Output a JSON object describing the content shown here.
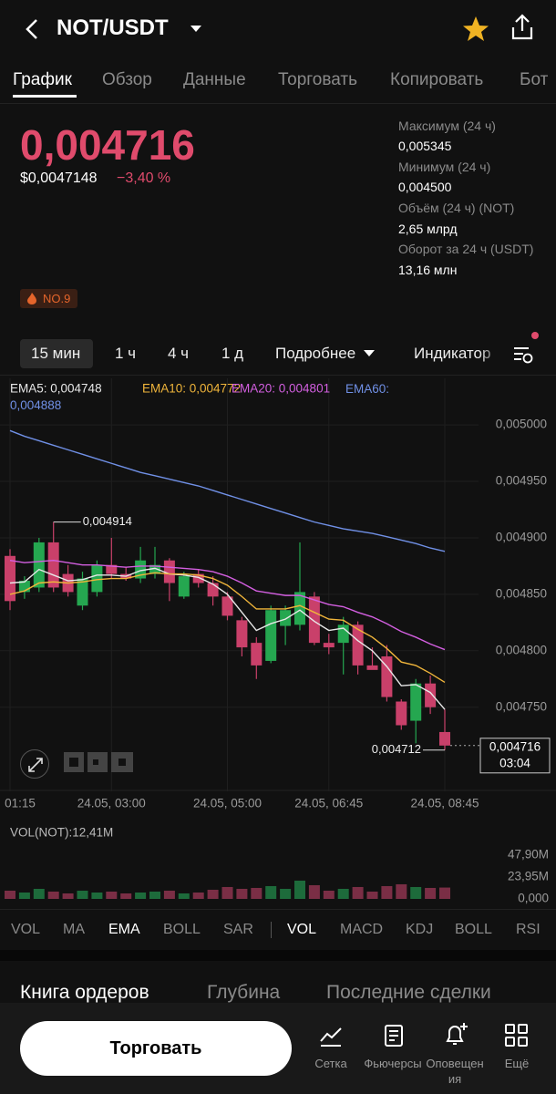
{
  "header": {
    "pair": "NOT/USDT"
  },
  "tabs": [
    "График",
    "Обзор",
    "Данные",
    "Торговать",
    "Копировать",
    "Бот"
  ],
  "price": {
    "last": "0,004716",
    "usd": "$0,0047148",
    "change": "−3,40 %"
  },
  "stats": [
    {
      "label": "Максимум (24 ч)",
      "value": "0,005345"
    },
    {
      "label": "Минимум (24 ч)",
      "value": "0,004500"
    },
    {
      "label": "Объём (24 ч) (NOT)",
      "value": "2,65 млрд"
    },
    {
      "label": "Оборот за 24 ч (USDT)",
      "value": "13,16 млн"
    }
  ],
  "badge": "NO.9",
  "timeframes": [
    "15 мин",
    "1 ч",
    "4 ч",
    "1 д",
    "Подробнее",
    "Индикатор"
  ],
  "indicators": [
    "VOL",
    "MA",
    "EMA",
    "BOLL",
    "SAR",
    "VOL",
    "MACD",
    "KDJ",
    "BOLL",
    "RSI"
  ],
  "book_tabs": [
    "Книга ордеров",
    "Глубина",
    "Последние сделки"
  ],
  "bottom": {
    "button": "Торговать",
    "items": [
      "Сетка",
      "Фьючерсы",
      "Оповещения",
      "Ещё"
    ]
  },
  "chart_data": [
    {
      "type": "candlestick",
      "categories": [
        "01:15",
        null,
        null,
        null,
        null,
        null,
        null,
        "24.05, 03:00",
        null,
        null,
        null,
        null,
        null,
        null,
        null,
        "24.05, 05:00",
        null,
        null,
        null,
        null,
        null,
        null,
        "24.05, 06:45",
        null,
        null,
        null,
        null,
        null,
        null,
        null,
        "24.05, 08:45"
      ],
      "open": [
        0.004884,
        0.004852,
        0.004856,
        0.004896,
        0.004868,
        0.00484,
        0.004852,
        0.004876,
        0.004868,
        0.004864,
        0.004868,
        0.00488,
        0.004848,
        0.004868,
        0.00486,
        0.004848,
        0.004827,
        0.004807,
        0.004791,
        0.004822,
        0.004823,
        0.004848,
        0.004807,
        0.004807,
        0.004823,
        0.004787,
        0.004795,
        0.004755,
        0.004738,
        0.004771,
        0.004728
      ],
      "high": [
        0.00489,
        0.004866,
        0.0049,
        0.004914,
        0.004876,
        0.00487,
        0.00488,
        0.0049,
        0.004874,
        0.004892,
        0.004892,
        0.004882,
        0.00487,
        0.004872,
        0.004866,
        0.004852,
        0.00483,
        0.004812,
        0.00484,
        0.00484,
        0.004896,
        0.004852,
        0.004815,
        0.00483,
        0.004826,
        0.004803,
        0.004805,
        0.004757,
        0.004775,
        0.004778,
        0.004748
      ],
      "low": [
        0.004836,
        0.004846,
        0.004852,
        0.004852,
        0.004848,
        0.004836,
        0.004848,
        0.004864,
        0.004862,
        0.00486,
        0.004864,
        0.004844,
        0.004846,
        0.004856,
        0.00484,
        0.004827,
        0.004795,
        0.004775,
        0.004789,
        0.004805,
        0.004818,
        0.004805,
        0.004797,
        0.004779,
        0.004779,
        0.004785,
        0.004755,
        0.00473,
        0.004718,
        0.004744,
        0.004712
      ],
      "close": [
        0.004844,
        0.004862,
        0.004896,
        0.004856,
        0.004852,
        0.004864,
        0.004876,
        0.004868,
        0.004864,
        0.00488,
        0.004876,
        0.00486,
        0.004866,
        0.00486,
        0.004848,
        0.004831,
        0.004803,
        0.004787,
        0.004836,
        0.004836,
        0.004852,
        0.004807,
        0.004803,
        0.004823,
        0.004787,
        0.004783,
        0.004759,
        0.004734,
        0.004771,
        0.00475,
        0.004716
      ],
      "up_color": "#25a750",
      "down_color": "#c9406a",
      "series": [
        {
          "name": "EMA5: 0,004748",
          "color": "#e8e8e8",
          "values": [
            0.00486,
            0.004861,
            0.004872,
            0.004867,
            0.004862,
            0.004863,
            0.004867,
            0.004867,
            0.004866,
            0.004871,
            0.004873,
            0.004868,
            0.004867,
            0.004865,
            0.004859,
            0.00485,
            0.004834,
            0.004818,
            0.004824,
            0.004828,
            0.004836,
            0.004826,
            0.004818,
            0.00482,
            0.004809,
            0.0048,
            0.004786,
            0.004769,
            0.00477,
            0.004763,
            0.004748
          ]
        },
        {
          "name": "EMA10: 0,004772",
          "color": "#f0b53b",
          "values": [
            0.00485,
            0.004853,
            0.00486,
            0.004861,
            0.00486,
            0.004861,
            0.004863,
            0.004864,
            0.004864,
            0.004867,
            0.004869,
            0.004868,
            0.004868,
            0.004867,
            0.004864,
            0.004858,
            0.004848,
            0.004837,
            0.004837,
            0.004837,
            0.00484,
            0.004834,
            0.004828,
            0.004827,
            0.004819,
            0.004812,
            0.004802,
            0.00479,
            0.004787,
            0.00478,
            0.004772
          ]
        },
        {
          "name": "EMA20: 0,004801",
          "color": "#d35fe0",
          "values": [
            0.00488,
            0.004878,
            0.004879,
            0.00488,
            0.004878,
            0.004876,
            0.004876,
            0.004875,
            0.004874,
            0.004875,
            0.004875,
            0.004874,
            0.004873,
            0.004872,
            0.00487,
            0.004866,
            0.00486,
            0.004853,
            0.004851,
            0.004849,
            0.004849,
            0.004845,
            0.004841,
            0.004839,
            0.004834,
            0.00483,
            0.004824,
            0.004817,
            0.004812,
            0.004806,
            0.004801
          ]
        },
        {
          "name": "EMA60: 0,004888",
          "color": "#7090e6",
          "values": [
            0.004995,
            0.00499,
            0.004986,
            0.004982,
            0.004978,
            0.004974,
            0.00497,
            0.004966,
            0.004962,
            0.004958,
            0.004955,
            0.004952,
            0.004949,
            0.004946,
            0.004942,
            0.004938,
            0.004934,
            0.00493,
            0.004926,
            0.004922,
            0.004918,
            0.004914,
            0.004911,
            0.004908,
            0.004906,
            0.004904,
            0.004901,
            0.004898,
            0.004895,
            0.004891,
            0.004888
          ]
        }
      ],
      "ylim": [
        0.00469,
        0.005009
      ],
      "yticks": [
        {
          "value": 0.005,
          "label": "0,005000"
        },
        {
          "value": 0.00495,
          "label": "0,004950"
        },
        {
          "value": 0.0049,
          "label": "0,004900"
        },
        {
          "value": 0.00485,
          "label": "0,004850"
        },
        {
          "value": 0.0048,
          "label": "0,004800"
        },
        {
          "value": 0.00475,
          "label": "0,004750"
        }
      ],
      "grid": true,
      "annotations": {
        "high": "0,004914",
        "low": "0,004712",
        "last": "0,004716",
        "countdown": "03:04"
      }
    },
    {
      "type": "bar",
      "title": "VOL(NOT):12,41M",
      "values": [
        9,
        7,
        11,
        8,
        6,
        9,
        7,
        8,
        6,
        7,
        8,
        9,
        6,
        7,
        10,
        13,
        11,
        12,
        14,
        11,
        20,
        15,
        9,
        11,
        13,
        8,
        14,
        16,
        13,
        12,
        12.41
      ],
      "ylim": [
        0,
        47.9
      ],
      "yticks": [
        {
          "value": 47.9,
          "label": "47,90M"
        },
        {
          "value": 23.95,
          "label": "23,95M"
        },
        {
          "value": 0,
          "label": "0,000"
        }
      ]
    }
  ]
}
